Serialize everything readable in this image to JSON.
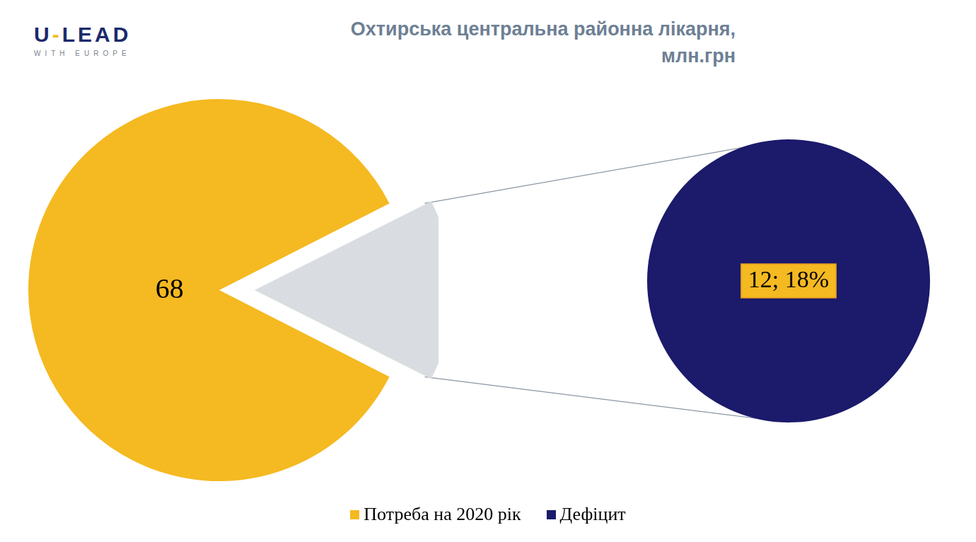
{
  "chart_data": {
    "type": "pie_of_pie",
    "title": "Охтирська центральна районна лікарня, млн.грн",
    "categories": [
      "Потреба на 2020 рік",
      "Дефіцит"
    ],
    "values": [
      68,
      12
    ],
    "value_labels": [
      "68",
      "12; 18%"
    ],
    "colors": [
      "#f5b921",
      "#1b1a6b"
    ],
    "data_labels": true,
    "legend": "bottom"
  },
  "logo": {
    "title": "U-LEAD",
    "subtitle": "WITH EUROPE"
  }
}
